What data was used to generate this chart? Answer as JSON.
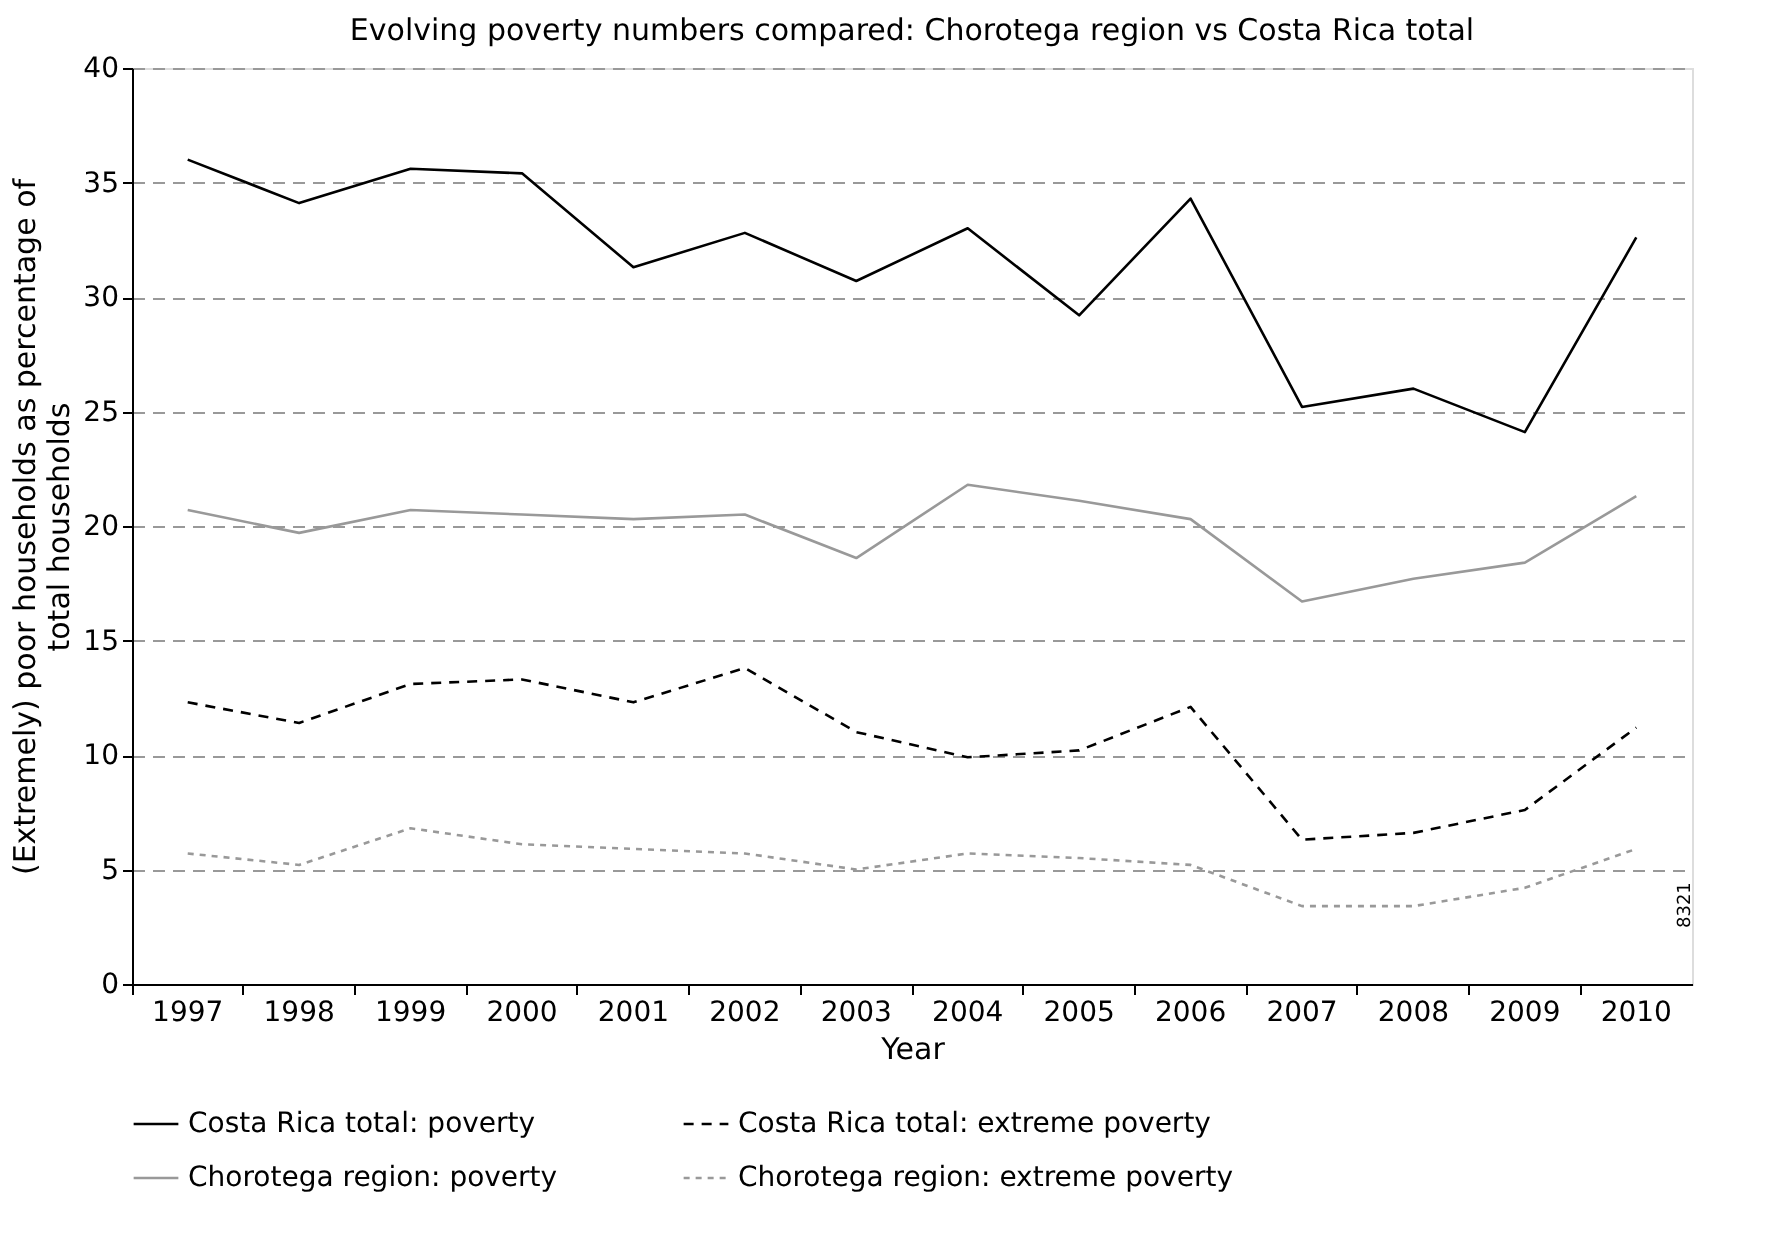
{
  "chart_data": {
    "type": "line",
    "title": "Evolving poverty numbers compared: Chorotega region vs Costa Rica total",
    "xlabel": "Year",
    "ylabel": "(Extremely) poor households as percentage of total households",
    "categories": [
      "1997",
      "1998",
      "1999",
      "2000",
      "2001",
      "2002",
      "2003",
      "2004",
      "2005",
      "2006",
      "2007",
      "2008",
      "2009",
      "2010"
    ],
    "series": [
      {
        "name": "Costa Rica total: poverty",
        "color": "#000000",
        "line_style": "solid",
        "values": [
          36.0,
          34.1,
          35.6,
          35.4,
          31.3,
          32.8,
          30.7,
          33.0,
          29.2,
          34.3,
          25.2,
          26.0,
          24.1,
          32.6
        ]
      },
      {
        "name": "Costa Rica total: extreme poverty",
        "color": "#000000",
        "line_style": "dashed",
        "values": [
          12.3,
          11.4,
          13.1,
          13.3,
          12.3,
          13.8,
          11.0,
          9.9,
          10.2,
          12.1,
          6.3,
          6.6,
          7.6,
          11.2
        ]
      },
      {
        "name": "Chorotega region: poverty",
        "color": "#999999",
        "line_style": "solid",
        "values": [
          20.7,
          19.7,
          20.7,
          20.5,
          20.3,
          20.5,
          18.6,
          21.8,
          21.1,
          20.3,
          16.7,
          17.7,
          18.4,
          21.3
        ]
      },
      {
        "name": "Chorotega region: extreme poverty",
        "color": "#999999",
        "line_style": "dotted",
        "values": [
          5.7,
          5.2,
          6.8,
          6.1,
          5.9,
          5.7,
          5.0,
          5.7,
          5.5,
          5.2,
          3.4,
          3.4,
          4.2,
          5.9
        ]
      }
    ],
    "ylim": [
      0,
      40
    ],
    "yticks": [
      0,
      5,
      10,
      15,
      20,
      25,
      30,
      35,
      40
    ],
    "grid": "y",
    "legend": "bottom",
    "marker": "none",
    "annotations": [
      "8321"
    ]
  }
}
